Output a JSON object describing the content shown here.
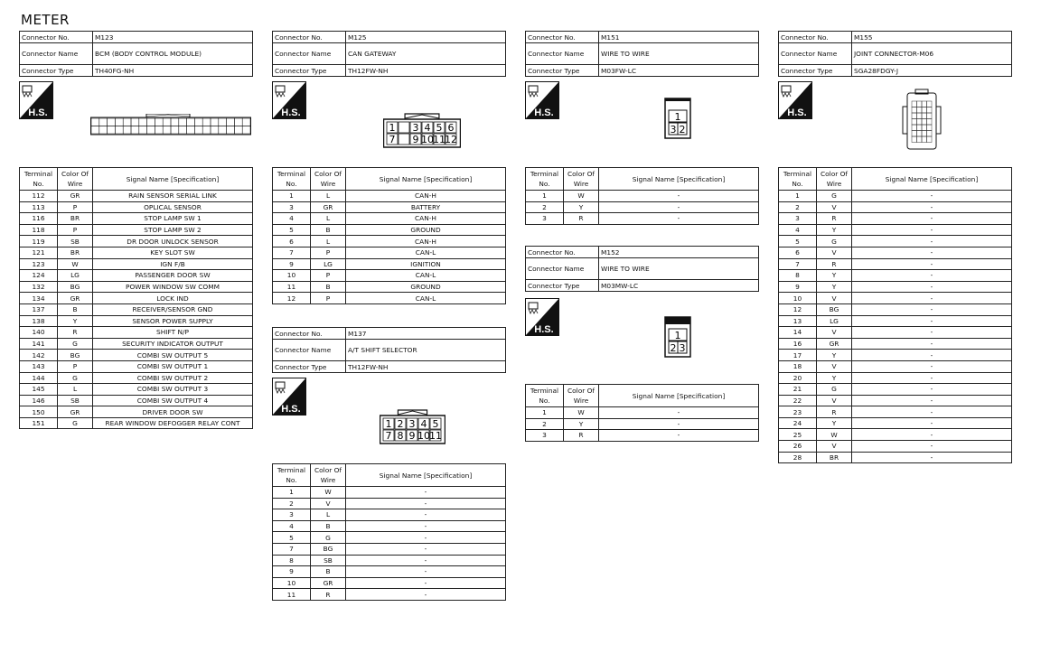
{
  "page_title": "METER",
  "labels": {
    "connector_no": "Connector No.",
    "connector_name": "Connector Name",
    "connector_type": "Connector Type",
    "terminal_no": "Terminal No.",
    "color_of_wire": "Color Of Wire",
    "signal_name": "Signal Name [Specification]",
    "hs": "H.S."
  },
  "connectors": [
    {
      "no": "M123",
      "name": "BCM (BODY CONTROL MODULE)",
      "type": "TH40FG-NH",
      "terminals": [
        [
          "112",
          "GR",
          "RAIN SENSOR SERIAL LINK"
        ],
        [
          "113",
          "P",
          "OPLICAL SENSOR"
        ],
        [
          "116",
          "BR",
          "STOP LAMP SW 1"
        ],
        [
          "118",
          "P",
          "STOP LAMP SW 2"
        ],
        [
          "119",
          "SB",
          "DR DOOR UNLOCK SENSOR"
        ],
        [
          "121",
          "BR",
          "KEY SLOT SW"
        ],
        [
          "123",
          "W",
          "IGN F/B"
        ],
        [
          "124",
          "LG",
          "PASSENGER DOOR SW"
        ],
        [
          "132",
          "BG",
          "POWER WINDOW SW COMM"
        ],
        [
          "134",
          "GR",
          "LOCK IND"
        ],
        [
          "137",
          "B",
          "RECEIVER/SENSOR GND"
        ],
        [
          "138",
          "Y",
          "SENSOR POWER SUPPLY"
        ],
        [
          "140",
          "R",
          "SHIFT N/P"
        ],
        [
          "141",
          "G",
          "SECURITY INDICATOR OUTPUT"
        ],
        [
          "142",
          "BG",
          "COMBI SW OUTPUT 5"
        ],
        [
          "143",
          "P",
          "COMBI SW OUTPUT 1"
        ],
        [
          "144",
          "G",
          "COMBI SW OUTPUT 2"
        ],
        [
          "145",
          "L",
          "COMBI SW OUTPUT 3"
        ],
        [
          "146",
          "SB",
          "COMBI SW OUTPUT 4"
        ],
        [
          "150",
          "GR",
          "DRIVER DOOR SW"
        ],
        [
          "151",
          "G",
          "REAR WINDOW DEFOGGER RELAY CONT"
        ]
      ]
    },
    {
      "no": "M125",
      "name": "CAN GATEWAY",
      "type": "TH12FW-NH",
      "pins": [
        [
          "1",
          "",
          "3",
          "4",
          "5",
          "6"
        ],
        [
          "7",
          "",
          "9",
          "10",
          "11",
          "12"
        ]
      ],
      "terminals": [
        [
          "1",
          "L",
          "CAN-H"
        ],
        [
          "3",
          "GR",
          "BATTERY"
        ],
        [
          "4",
          "L",
          "CAN-H"
        ],
        [
          "5",
          "B",
          "GROUND"
        ],
        [
          "6",
          "L",
          "CAN-H"
        ],
        [
          "7",
          "P",
          "CAN-L"
        ],
        [
          "9",
          "LG",
          "IGNITION"
        ],
        [
          "10",
          "P",
          "CAN-L"
        ],
        [
          "11",
          "B",
          "GROUND"
        ],
        [
          "12",
          "P",
          "CAN-L"
        ]
      ]
    },
    {
      "no": "M137",
      "name": "A/T SHIFT SELECTOR",
      "type": "TH12FW-NH",
      "pins": [
        [
          "1",
          "2",
          "3",
          "4",
          "5"
        ],
        [
          "7",
          "8",
          "9",
          "10",
          "11"
        ]
      ],
      "terminals": [
        [
          "1",
          "W",
          "-"
        ],
        [
          "2",
          "V",
          "-"
        ],
        [
          "3",
          "L",
          "-"
        ],
        [
          "4",
          "B",
          "-"
        ],
        [
          "5",
          "G",
          "-"
        ],
        [
          "7",
          "BG",
          "-"
        ],
        [
          "8",
          "SB",
          "-"
        ],
        [
          "9",
          "B",
          "-"
        ],
        [
          "10",
          "GR",
          "-"
        ],
        [
          "11",
          "R",
          "-"
        ]
      ]
    },
    {
      "no": "M151",
      "name": "WIRE TO WIRE",
      "type": "M03FW-LC",
      "pins": [
        [
          "1"
        ],
        [
          "3",
          "2"
        ]
      ],
      "terminals": [
        [
          "1",
          "W",
          "-"
        ],
        [
          "2",
          "Y",
          "-"
        ],
        [
          "3",
          "R",
          "-"
        ]
      ]
    },
    {
      "no": "M152",
      "name": "WIRE TO WIRE",
      "type": "M03MW-LC",
      "pins": [
        [
          "1"
        ],
        [
          "2",
          "3"
        ]
      ],
      "terminals": [
        [
          "1",
          "W",
          "-"
        ],
        [
          "2",
          "Y",
          "-"
        ],
        [
          "3",
          "R",
          "-"
        ]
      ]
    },
    {
      "no": "M155",
      "name": "JOINT CONNECTOR-M06",
      "type": "SGA28FDGY-J",
      "terminals": [
        [
          "1",
          "G",
          "-"
        ],
        [
          "2",
          "V",
          "-"
        ],
        [
          "3",
          "R",
          "-"
        ],
        [
          "4",
          "Y",
          "-"
        ],
        [
          "5",
          "G",
          "-"
        ],
        [
          "6",
          "V",
          "-"
        ],
        [
          "7",
          "R",
          "-"
        ],
        [
          "8",
          "Y",
          "-"
        ],
        [
          "9",
          "Y",
          "-"
        ],
        [
          "10",
          "V",
          "-"
        ],
        [
          "12",
          "BG",
          "-"
        ],
        [
          "13",
          "LG",
          "-"
        ],
        [
          "14",
          "V",
          "-"
        ],
        [
          "16",
          "GR",
          "-"
        ],
        [
          "17",
          "Y",
          "-"
        ],
        [
          "18",
          "V",
          "-"
        ],
        [
          "20",
          "Y",
          "-"
        ],
        [
          "21",
          "G",
          "-"
        ],
        [
          "22",
          "V",
          "-"
        ],
        [
          "23",
          "R",
          "-"
        ],
        [
          "24",
          "Y",
          "-"
        ],
        [
          "25",
          "W",
          "-"
        ],
        [
          "26",
          "V",
          "-"
        ],
        [
          "28",
          "BR",
          "-"
        ]
      ]
    }
  ]
}
